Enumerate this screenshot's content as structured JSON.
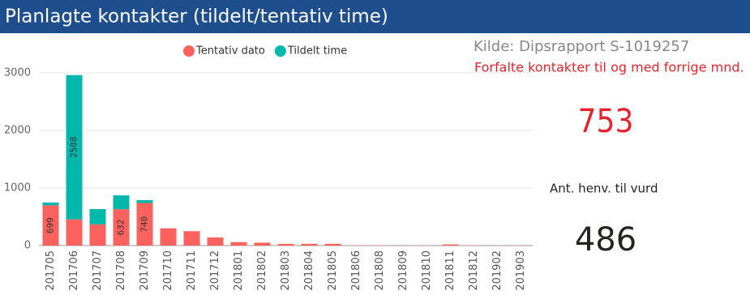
{
  "chart_data": {
    "type": "stacked_bar",
    "title": "Planlagte kontakter (tildelt/tentativ time)",
    "categories": [
      "201705",
      "201706",
      "201707",
      "201708",
      "201709",
      "201710",
      "201711",
      "201712",
      "201801",
      "201802",
      "201803",
      "201804",
      "201805",
      "201806",
      "201808",
      "201809",
      "201810",
      "201811",
      "201812",
      "201902",
      "201903"
    ],
    "series": [
      {
        "name": "Tentativ dato",
        "color": "#fd625e",
        "values": [
          699,
          455,
          370,
          632,
          740,
          300,
          250,
          140,
          60,
          50,
          30,
          30,
          30,
          5,
          5,
          3,
          3,
          20,
          5,
          3,
          3
        ]
      },
      {
        "name": "Tildelt time",
        "color": "#01b8aa",
        "values": [
          50,
          2508,
          265,
          240,
          50,
          0,
          0,
          0,
          0,
          0,
          0,
          0,
          0,
          0,
          0,
          0,
          0,
          0,
          0,
          0,
          0
        ]
      }
    ],
    "ylim": [
      0,
      3000
    ],
    "yticks": [
      0,
      1000,
      2000,
      3000
    ],
    "grid": true,
    "legend": "top"
  },
  "source": "Kilde: Dipsrapport S-1019257",
  "kpis": [
    {
      "label": "Forfalte kontakter til og med forrige mnd.",
      "value": 753,
      "color": "#e8222a"
    },
    {
      "label": "Ant. henv. til vurd",
      "value": 486,
      "color": "#252423"
    }
  ]
}
